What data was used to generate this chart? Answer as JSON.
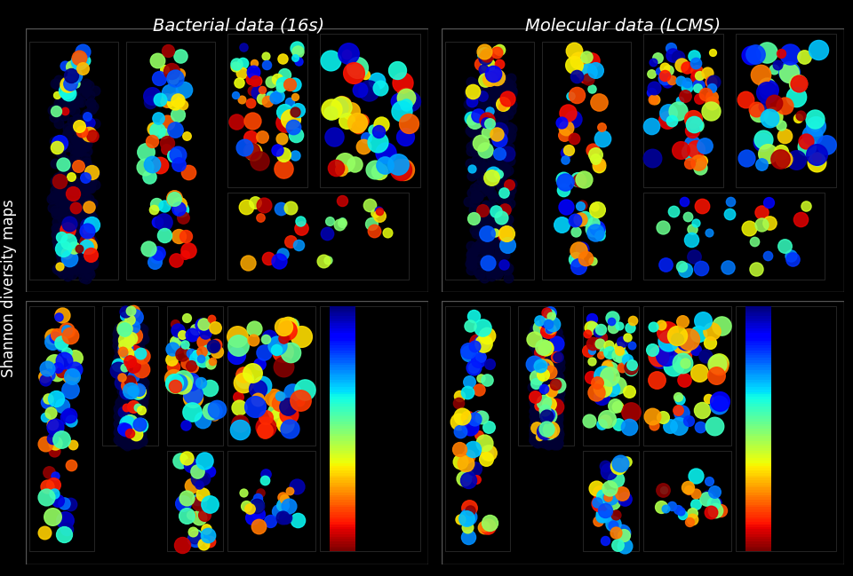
{
  "title_left": "Bacterial data (16s)",
  "title_right": "Molecular data (LCMS)",
  "ylabel": "Shannon diversity maps",
  "bg_color": "#000000",
  "panel_bg": "#000000",
  "title_color": "#ffffff",
  "label_color": "#ffffff",
  "fig_width": 9.6,
  "fig_height": 6.49,
  "colorbar_colors": [
    "#0000ff",
    "#00ffff",
    "#00ff00",
    "#ffff00",
    "#ff0000"
  ],
  "grid_rows": 2,
  "grid_cols": 2
}
